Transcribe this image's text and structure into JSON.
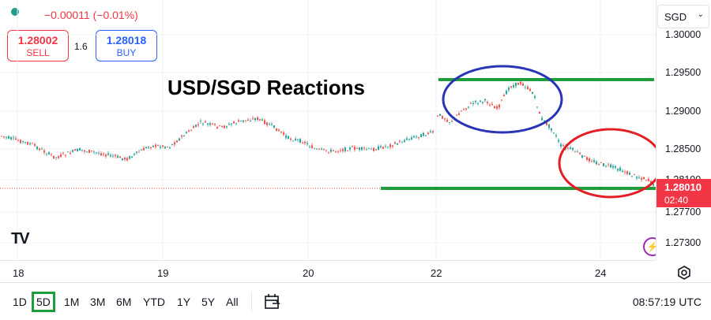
{
  "header": {
    "change": "−0.00011 (−0.01%)",
    "sell": {
      "price": "1.28002",
      "label": "SELL"
    },
    "buy": {
      "price": "1.28018",
      "label": "BUY"
    },
    "spread": "1.6",
    "currency": "SGD",
    "currency_icon": "chevron-down-icon"
  },
  "annotation": {
    "title": "USD/SGD Reactions"
  },
  "price_axis": {
    "ticks": [
      "1.30000",
      "1.29500",
      "1.29000",
      "1.28500",
      "1.28100",
      "1.27700",
      "1.27300"
    ],
    "last_price": "1.28010",
    "countdown": "02:40"
  },
  "time_axis": {
    "labels": [
      "18",
      "19",
      "20",
      "22",
      "24"
    ]
  },
  "toolbar": {
    "periods": [
      "1D",
      "5D",
      "1M",
      "3M",
      "6M",
      "YTD",
      "1Y",
      "5Y",
      "All"
    ],
    "active_period": "5D",
    "clock": "08:57:19 UTC"
  },
  "logo": {
    "text": "TV"
  },
  "colors": {
    "up": "#26a69a",
    "down": "#ef5350",
    "resistance": "#1f9d3a",
    "blue_circle": "#2a35b5",
    "red_circle": "#e51e25",
    "price_badge": "#f23645"
  }
}
